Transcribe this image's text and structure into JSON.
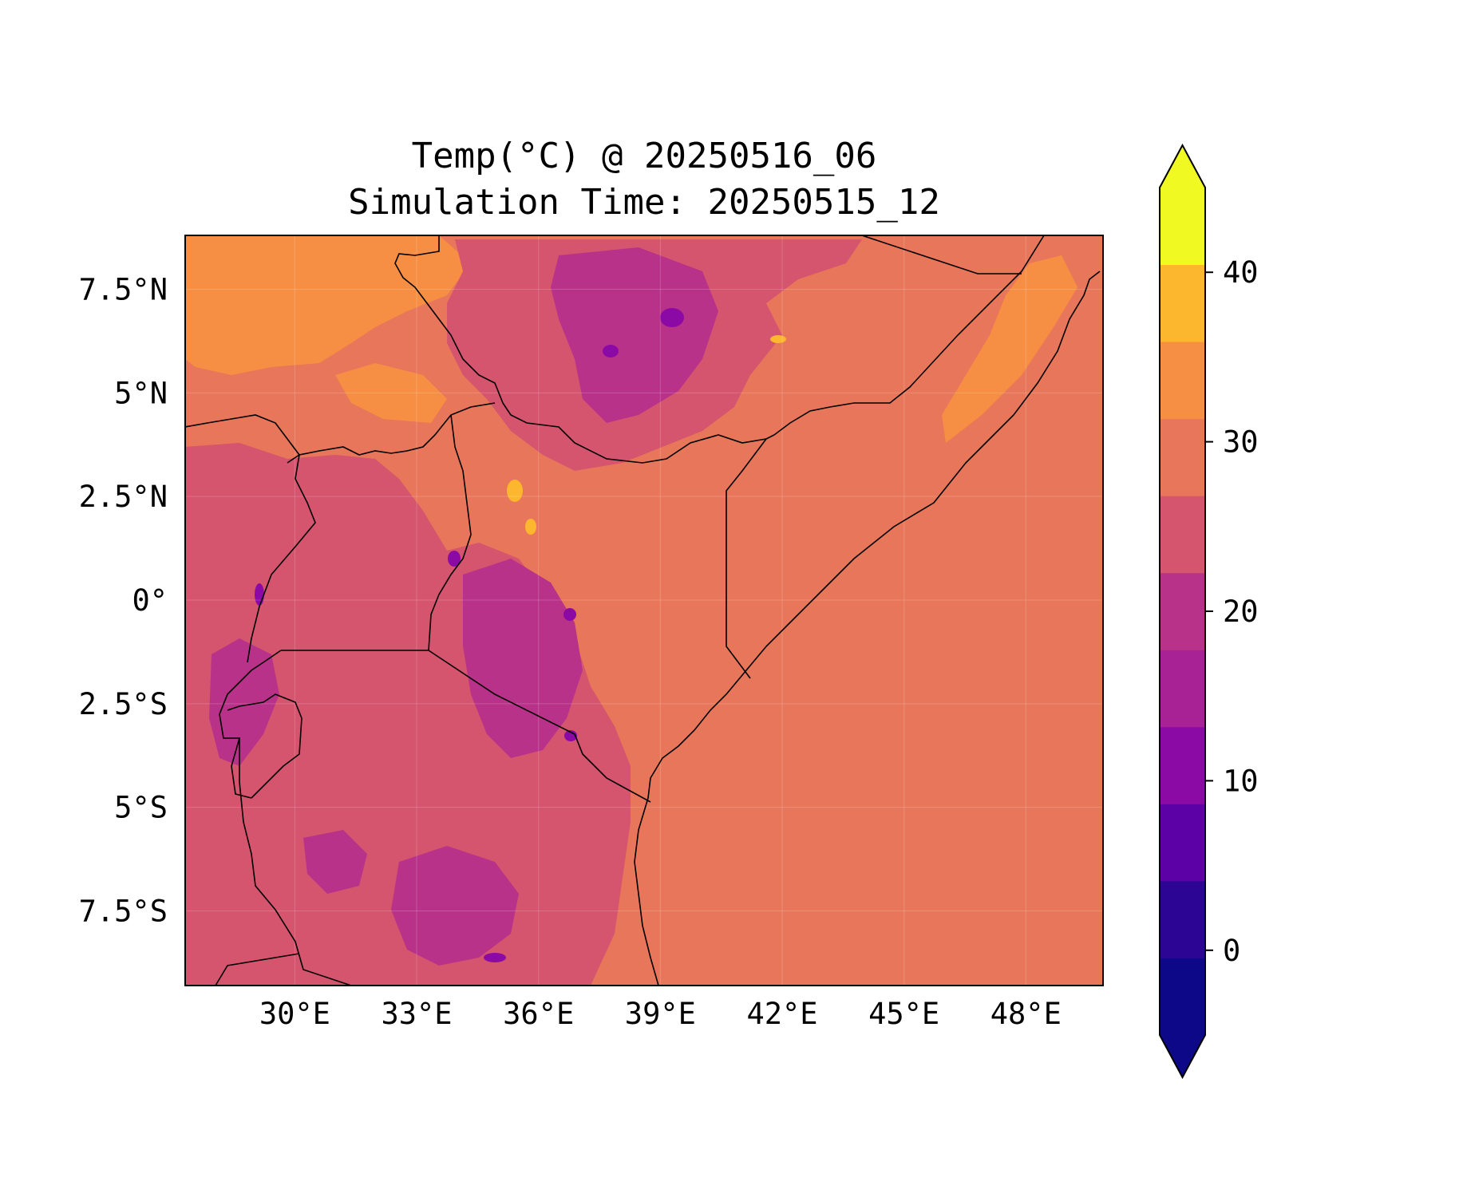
{
  "title_line1": "Temp(°C) @ 20250516_06",
  "title_line2": "Simulation Time: 20250515_12",
  "map": {
    "lon_range": [
      27.3,
      49.9
    ],
    "lat_range": [
      -9.3,
      8.8
    ],
    "lon_ticks": [
      "30°E",
      "33°E",
      "36°E",
      "39°E",
      "42°E",
      "45°E",
      "48°E"
    ],
    "lon_tick_values": [
      30,
      33,
      36,
      39,
      42,
      45,
      48
    ],
    "lat_ticks": [
      "7.5°N",
      "5°N",
      "2.5°N",
      "0°",
      "2.5°S",
      "5°S",
      "7.5°S"
    ],
    "lat_tick_values": [
      7.5,
      5,
      2.5,
      0,
      -2.5,
      -5,
      -7.5
    ],
    "ocean_value_c": 27.5,
    "colors": {
      "lt25": "#d5546e",
      "lt20": "#b83289",
      "lt15": "#8b0aa5",
      "bin25_30": "#e8765a",
      "bin30_35": "#f68f44",
      "bin35_40": "#fcb72e",
      "border": "#000000"
    }
  },
  "colorbar": {
    "ticks": [
      "0",
      "10",
      "20",
      "30",
      "40"
    ],
    "tick_values": [
      0,
      10,
      20,
      30,
      40
    ],
    "levels": [
      -5,
      0,
      5,
      10,
      15,
      20,
      25,
      30,
      35,
      40,
      45
    ],
    "colors": [
      "#0d0887",
      "#2c0594",
      "#5b01a5",
      "#8b0aa5",
      "#a82296",
      "#b83289",
      "#d5546e",
      "#e8765a",
      "#f68f44",
      "#fcb72e",
      "#f0f921"
    ],
    "extend": "both"
  }
}
